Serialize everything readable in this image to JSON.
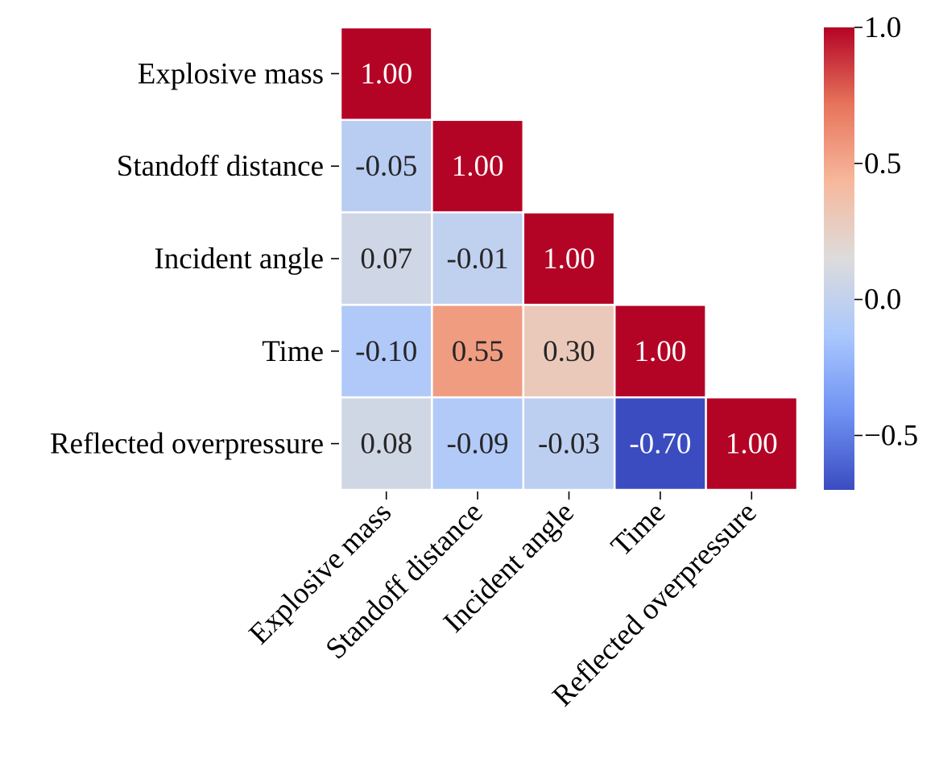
{
  "chart_data": {
    "type": "heatmap",
    "title": "",
    "xlabel": "",
    "ylabel": "",
    "variables": [
      "Explosive mass",
      "Standoff distance",
      "Incident angle",
      "Time",
      "Reflected overpressure"
    ],
    "matrix": [
      [
        1.0,
        null,
        null,
        null,
        null
      ],
      [
        -0.05,
        1.0,
        null,
        null,
        null
      ],
      [
        0.07,
        -0.01,
        1.0,
        null,
        null
      ],
      [
        -0.1,
        0.55,
        0.3,
        1.0,
        null
      ],
      [
        0.08,
        -0.09,
        -0.03,
        -0.7,
        1.0
      ]
    ],
    "cell_labels": [
      [
        "1.00",
        "",
        "",
        "",
        ""
      ],
      [
        "-0.05",
        "1.00",
        "",
        "",
        ""
      ],
      [
        "0.07",
        "-0.01",
        "1.00",
        "",
        ""
      ],
      [
        "-0.10",
        "0.55",
        "0.30",
        "1.00",
        ""
      ],
      [
        "0.08",
        "-0.09",
        "-0.03",
        "-0.70",
        "1.00"
      ]
    ],
    "colormap": "coolwarm",
    "colormap_stops": [
      "#3b4cc0",
      "#6f92f3",
      "#aac7fd",
      "#dddcdc",
      "#f7b89c",
      "#e7745b",
      "#b40426"
    ],
    "mask": "upper-triangle",
    "colorbar": {
      "min": -0.7,
      "max": 1.0,
      "ticks": [
        -0.5,
        0.0,
        0.5,
        1.0
      ],
      "tick_labels": [
        "−0.5",
        "0.0",
        "0.5",
        "1.0"
      ],
      "placement": "right"
    },
    "grid": false,
    "legend": "none"
  }
}
